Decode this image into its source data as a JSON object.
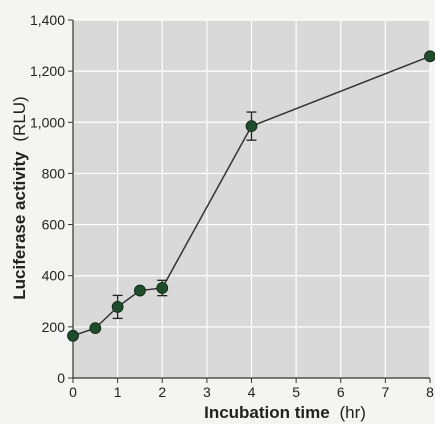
{
  "chart_data": {
    "type": "line",
    "xlabel": "Incubation time",
    "xlabel_unit": "(hr)",
    "ylabel": "Luciferase activity",
    "ylabel_unit": "(RLU)",
    "xlim": [
      0,
      8
    ],
    "ylim": [
      0,
      1400
    ],
    "x_ticks": [
      "0",
      "1",
      "2",
      "3",
      "4",
      "5",
      "6",
      "7",
      "8"
    ],
    "y_ticks": [
      "0",
      "200",
      "400",
      "600",
      "800",
      "1,000",
      "1,200",
      "1,400"
    ],
    "grid": true,
    "series": [
      {
        "x": [
          0,
          0.5,
          1,
          1.5,
          2,
          4,
          8
        ],
        "y": [
          165,
          195,
          278,
          342,
          352,
          985,
          1258
        ],
        "error": [
          null,
          null,
          45,
          null,
          30,
          55,
          null
        ]
      }
    ],
    "colors": {
      "plot_background": "#d9d9d9",
      "grid": "#ffffff",
      "line": "#333333",
      "marker": "#1f4d2b"
    }
  }
}
